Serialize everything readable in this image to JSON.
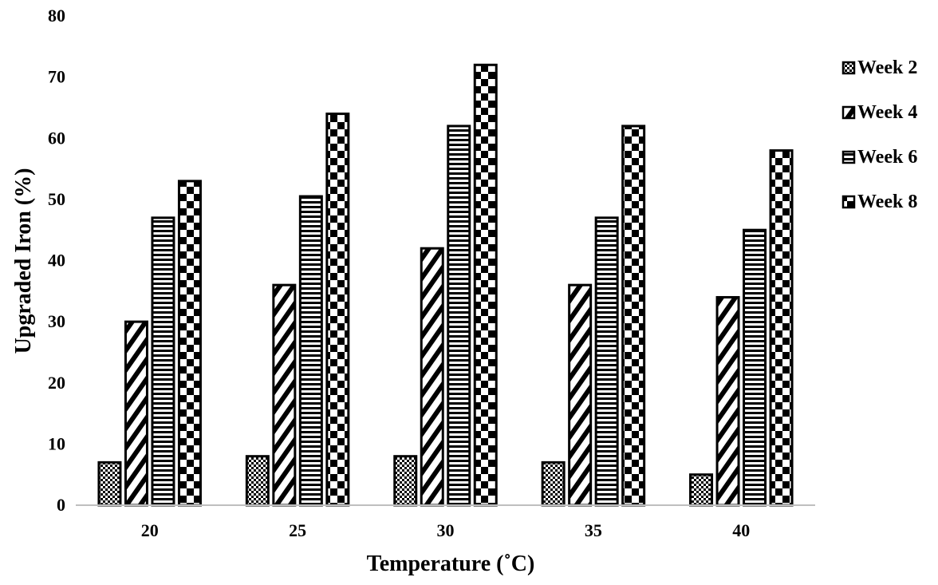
{
  "chart_data": {
    "type": "bar",
    "title": "",
    "xlabel": "Temperature (˚C)",
    "ylabel": "Upgraded Iron (%)",
    "categories": [
      "20",
      "25",
      "30",
      "35",
      "40"
    ],
    "ylim": [
      0,
      80
    ],
    "yticks": [
      0,
      10,
      20,
      30,
      40,
      50,
      60,
      70,
      80
    ],
    "grid": false,
    "legend_position": "right",
    "series": [
      {
        "name": "Week 2",
        "pattern": "checker-fine",
        "values": [
          7,
          8,
          8,
          7,
          5
        ]
      },
      {
        "name": "Week 4",
        "pattern": "diagonal-stripes",
        "values": [
          30,
          36,
          42,
          36,
          34
        ]
      },
      {
        "name": "Week 6",
        "pattern": "horizontal-stripes",
        "values": [
          47,
          50.5,
          62,
          47,
          45
        ]
      },
      {
        "name": "Week 8",
        "pattern": "checker-large",
        "values": [
          53,
          64,
          72,
          62,
          58
        ]
      }
    ],
    "colors": {
      "bar_fill": "#000000",
      "bar_background": "#ffffff",
      "axis": "#bfbfbf",
      "text": "#000000"
    }
  }
}
